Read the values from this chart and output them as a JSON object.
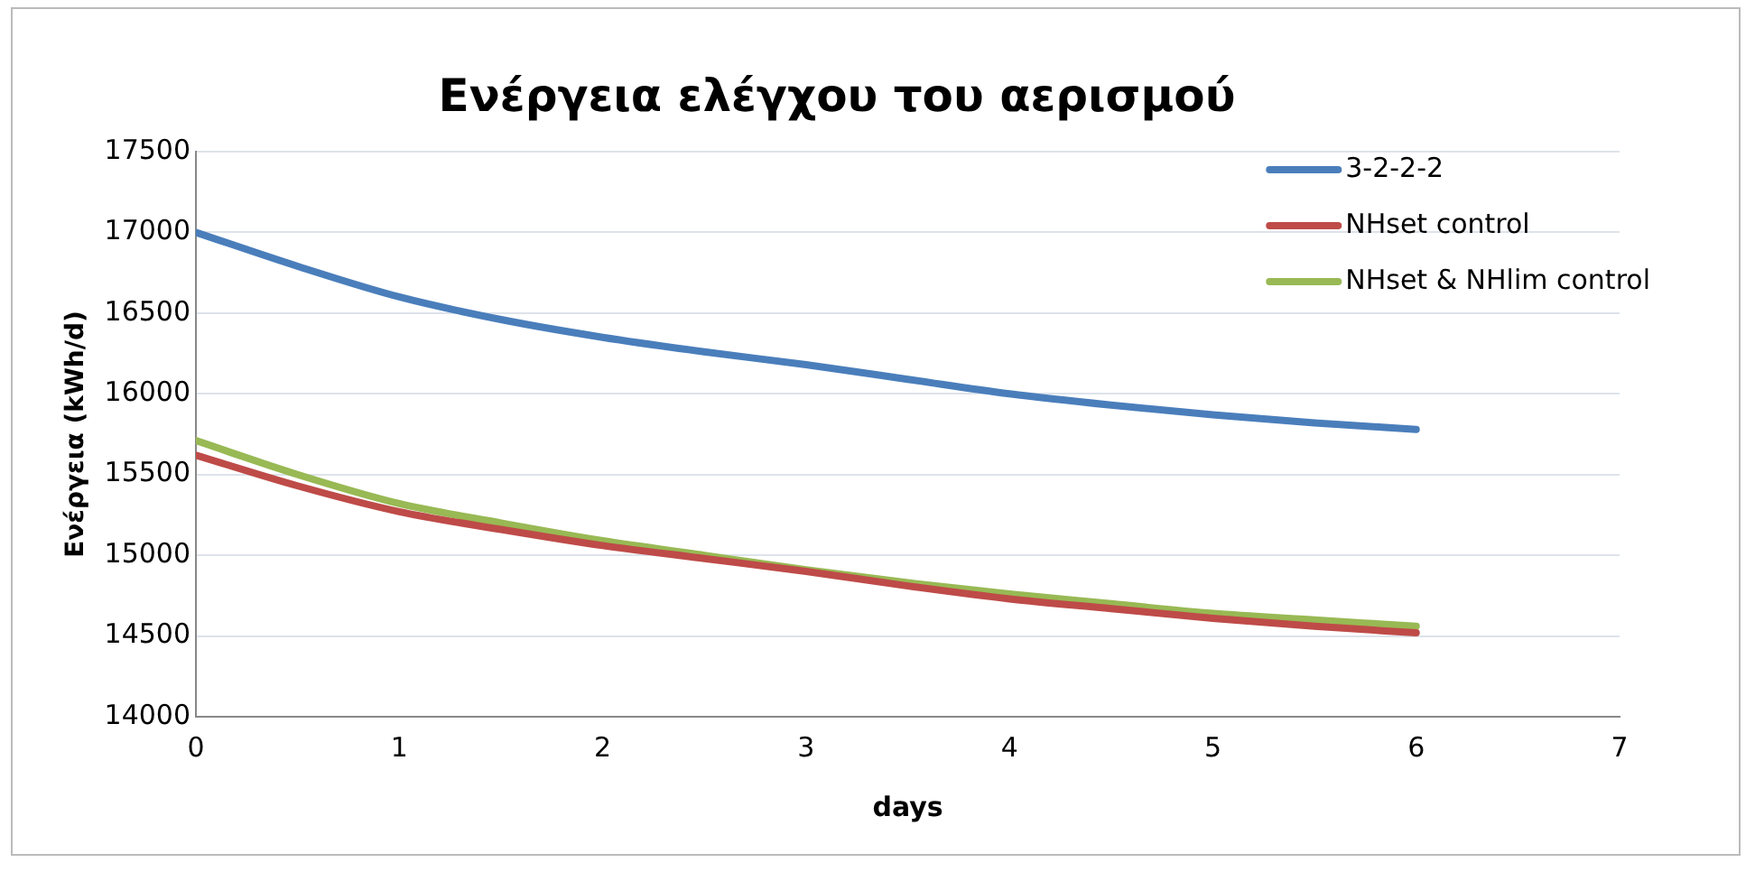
{
  "chart_data": {
    "type": "line",
    "title": "Ενέργεια ελέγχου του αερισμού",
    "xlabel": "days",
    "ylabel": "Ενέργεια (kWh/d)",
    "x": [
      0,
      0.5,
      1,
      1.5,
      2,
      2.5,
      3,
      3.5,
      4,
      4.5,
      5,
      5.5,
      6
    ],
    "series": [
      {
        "name": "3-2-2-2",
        "color": "#4a7ebb",
        "values": [
          17000,
          16790,
          16600,
          16460,
          16350,
          16260,
          16180,
          16090,
          16000,
          15930,
          15870,
          15820,
          15780
        ]
      },
      {
        "name": "NHset control",
        "color": "#be4b48",
        "values": [
          15620,
          15430,
          15270,
          15160,
          15060,
          14980,
          14900,
          14810,
          14730,
          14670,
          14610,
          14560,
          14520
        ]
      },
      {
        "name": "NHset & NHlim control",
        "color": "#98b954",
        "values": [
          15710,
          15500,
          15320,
          15200,
          15090,
          15000,
          14910,
          14830,
          14760,
          14700,
          14640,
          14600,
          14560
        ]
      }
    ],
    "xlim": [
      0,
      7
    ],
    "xticks": [
      0,
      1,
      2,
      3,
      4,
      5,
      6,
      7
    ],
    "ylim": [
      14000,
      17500
    ],
    "yticks": [
      14000,
      14500,
      15000,
      15500,
      16000,
      16500,
      17000,
      17500
    ],
    "grid": "y",
    "legend": "top right",
    "marker": "none",
    "line_style": "solid"
  }
}
